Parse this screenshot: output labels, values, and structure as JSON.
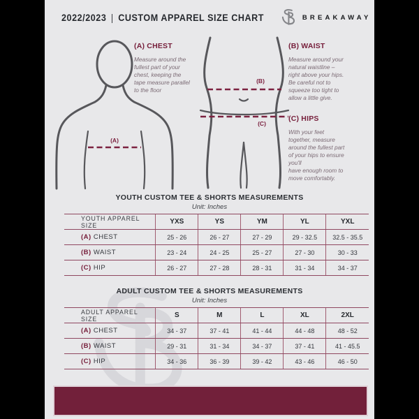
{
  "header": {
    "title_left": "2022/2023",
    "title_sep": "|",
    "title_right": "CUSTOM APPAREL SIZE CHART",
    "brand": "BREAKAWAY"
  },
  "instructions": {
    "chest": {
      "heading": "(A) CHEST",
      "body": "Measure around the\nfullest part of your\nchest, keeping the\ntape measure parallel\nto the floor"
    },
    "waist": {
      "heading": "(B) WAIST",
      "body": "Measure around your\nnatural waistline –\nright above your hips.\nBe careful not to\nsqueeze too tight to\nallow a little give."
    },
    "hips": {
      "heading": "(C) HIPS",
      "body": "With your feet\ntogether, measure\naround the fullest part\nof your hips to ensure\nyou'll\nhave enough room to\nmove comfortably."
    }
  },
  "diagram": {
    "label_a": "(A)",
    "label_b": "(B)",
    "label_c": "(C)"
  },
  "youth_table": {
    "title": "YOUTH CUSTOM TEE & SHORTS MEASUREMENTS",
    "unit": "Unit: Inches",
    "headers": [
      "YOUTH APPAREL SIZE",
      "YXS",
      "YS",
      "YM",
      "YL",
      "YXL"
    ],
    "rows": [
      {
        "prefix": "(A)",
        "label": "CHEST",
        "values": [
          "25 - 26",
          "26 - 27",
          "27 - 29",
          "29 - 32.5",
          "32.5 - 35.5"
        ]
      },
      {
        "prefix": "(B)",
        "label": "WAIST",
        "values": [
          "23 - 24",
          "24 - 25",
          "25 - 27",
          "27 - 30",
          "30 - 33"
        ]
      },
      {
        "prefix": "(C)",
        "label": "HIP",
        "values": [
          "26 - 27",
          "27 - 28",
          "28 - 31",
          "31 - 34",
          "34 - 37"
        ]
      }
    ]
  },
  "adult_table": {
    "title": "ADULT CUSTOM TEE & SHORTS MEASUREMENTS",
    "unit": "Unit: Inches",
    "headers": [
      "ADULT APPAREL SIZE",
      "S",
      "M",
      "L",
      "XL",
      "2XL"
    ],
    "rows": [
      {
        "prefix": "(A)",
        "label": "CHEST",
        "values": [
          "34 - 37",
          "37 - 41",
          "41 - 44",
          "44 - 48",
          "48 - 52"
        ]
      },
      {
        "prefix": "(B)",
        "label": "WAIST",
        "values": [
          "29 - 31",
          "31 - 34",
          "34 - 37",
          "37 - 41",
          "41 - 45.5"
        ]
      },
      {
        "prefix": "(C)",
        "label": "HIP",
        "values": [
          "34 - 36",
          "36 - 39",
          "39 - 42",
          "43 - 46",
          "46 - 50"
        ]
      }
    ]
  },
  "colors": {
    "maroon_accent": "#77203c",
    "footer_bar": "#72203a",
    "table_line": "#8f4760",
    "document_bg": "#e8e8ea",
    "side_padding": "#000000"
  }
}
